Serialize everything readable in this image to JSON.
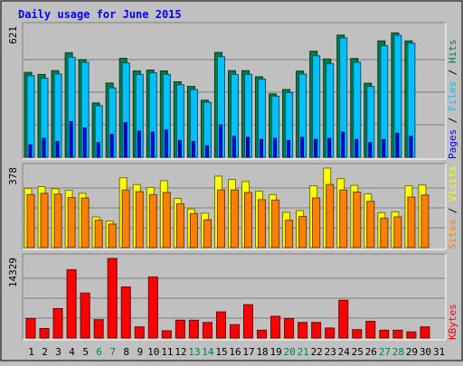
{
  "chart_data": {
    "type": "bar",
    "title": "Daily usage for June 2015",
    "x": [
      "1",
      "2",
      "3",
      "4",
      "5",
      "6",
      "7",
      "8",
      "9",
      "10",
      "11",
      "12",
      "13",
      "14",
      "15",
      "16",
      "17",
      "18",
      "19",
      "20",
      "21",
      "22",
      "23",
      "24",
      "25",
      "26",
      "27",
      "28",
      "29",
      "30",
      "31"
    ],
    "weekend_days": [
      "6",
      "7",
      "13",
      "14",
      "20",
      "21",
      "27",
      "28"
    ],
    "panels": [
      {
        "id": "hits",
        "ymax_label": "621",
        "ylim": [
          0,
          621
        ],
        "legend": [
          "Pages",
          "Files",
          "Hits"
        ],
        "series": [
          {
            "name": "Hits",
            "color": "#008040",
            "values": [
              405,
              395,
              413,
              499,
              466,
              259,
              354,
              472,
              412,
              416,
              412,
              360,
              338,
              272,
              500,
              413,
              413,
              384,
              302,
              323,
              411,
              506,
              469,
              583,
              471,
              353,
              555,
              593,
              555,
              null,
              null
            ]
          },
          {
            "name": "Files",
            "color": "#00c0ff",
            "values": [
              389,
              377,
              397,
              477,
              453,
              246,
              331,
              450,
              395,
              403,
              395,
              346,
              323,
              262,
              480,
              395,
              396,
              373,
              291,
              309,
              397,
              484,
              446,
              569,
              453,
              338,
              532,
              582,
              544,
              null,
              null
            ]
          },
          {
            "name": "Pages",
            "color": "#0000ff",
            "values": [
              60,
              90,
              75,
              170,
              140,
              70,
              110,
              165,
              125,
              120,
              130,
              80,
              75,
              55,
              155,
              100,
              95,
              85,
              90,
              80,
              95,
              85,
              90,
              120,
              85,
              70,
              85,
              115,
              100,
              null,
              null
            ]
          }
        ]
      },
      {
        "id": "visits",
        "ymax_label": "378",
        "ylim": [
          0,
          378
        ],
        "legend": [
          "Sites",
          "Visits"
        ],
        "series": [
          {
            "name": "Visits",
            "color": "#ffff00",
            "values": [
              282,
              290,
              280,
              272,
              258,
              146,
              126,
              332,
              300,
              286,
              318,
              234,
              184,
              164,
              340,
              324,
              314,
              268,
              252,
              168,
              176,
              294,
              378,
              328,
              296,
              256,
              166,
              170,
              294,
              298,
              null
            ]
          },
          {
            "name": "Sites",
            "color": "#ff8000",
            "values": [
              252,
              258,
              254,
              238,
              236,
              130,
              112,
              274,
              266,
              252,
              262,
              208,
              162,
              132,
              274,
              274,
              262,
              228,
              226,
              130,
              148,
              236,
              300,
              274,
              264,
              220,
              140,
              146,
              240,
              250,
              null
            ]
          }
        ]
      },
      {
        "id": "kbytes",
        "ymax_label": "14329",
        "ylim": [
          0,
          14329
        ],
        "legend": [
          "KBytes"
        ],
        "series": [
          {
            "name": "KBytes",
            "color": "#ff0000",
            "values": [
              3500,
              1700,
              5300,
              12300,
              8100,
              3300,
              14329,
              9200,
              2000,
              11000,
              1300,
              3200,
              3200,
              2800,
              4700,
              2400,
              6000,
              1400,
              3900,
              3500,
              2800,
              2800,
              1800,
              6800,
              1500,
              3000,
              1400,
              1400,
              1100,
              2000,
              null
            ]
          }
        ]
      }
    ]
  }
}
